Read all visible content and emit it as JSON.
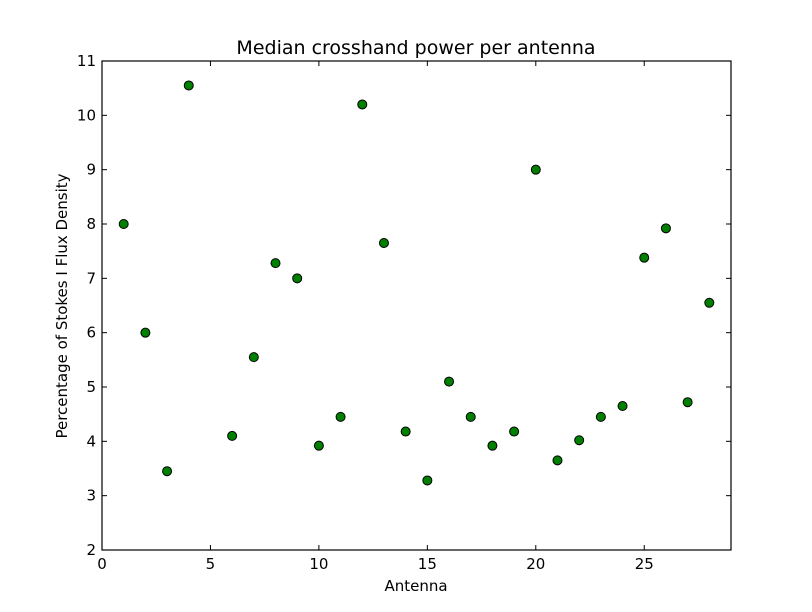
{
  "chart_data": {
    "type": "scatter",
    "title": "Median crosshand power per antenna",
    "xlabel": "Antenna",
    "ylabel": "Percentage of Stokes I Flux Density",
    "xlim": [
      0,
      29
    ],
    "ylim": [
      2,
      11
    ],
    "xticks": [
      0,
      5,
      10,
      15,
      20,
      25
    ],
    "yticks": [
      2,
      3,
      4,
      5,
      6,
      7,
      8,
      9,
      10,
      11
    ],
    "grid": false,
    "marker_color": "#008000",
    "marker_edge_color": "#000000",
    "series": [
      {
        "x": [
          1,
          2,
          3,
          4,
          6,
          7,
          8,
          9,
          10,
          11,
          12,
          13,
          14,
          15,
          16,
          17,
          18,
          19,
          20,
          21,
          22,
          23,
          24,
          25,
          26,
          27,
          28
        ],
        "y": [
          8.0,
          6.0,
          3.45,
          10.55,
          4.1,
          5.55,
          7.28,
          7.0,
          3.92,
          4.45,
          10.2,
          7.65,
          4.18,
          3.28,
          5.1,
          4.45,
          3.92,
          4.18,
          9.0,
          3.65,
          4.02,
          4.45,
          4.65,
          7.38,
          7.92,
          4.72,
          6.55
        ]
      }
    ]
  }
}
